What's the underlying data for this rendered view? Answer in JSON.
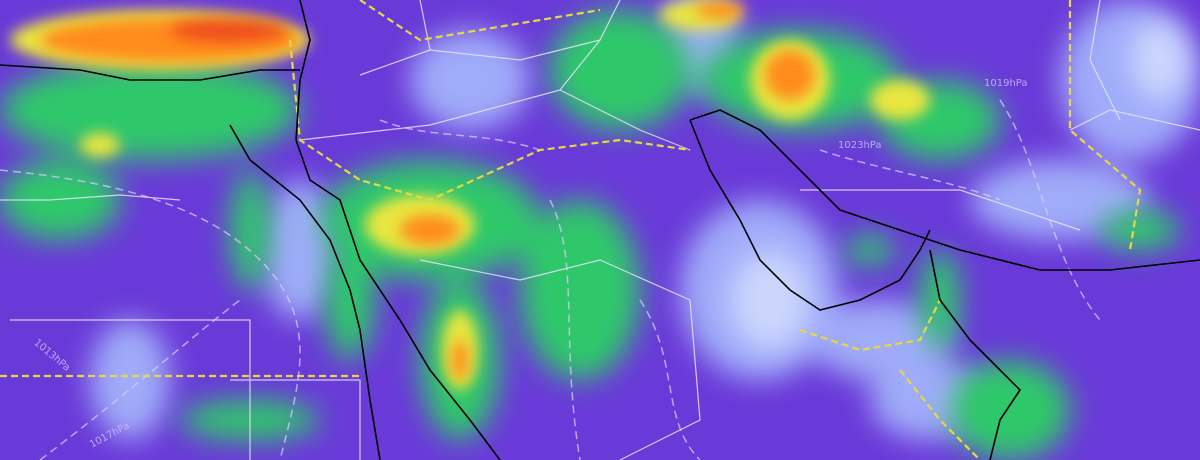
{
  "map": {
    "field_colors": {
      "base": "#6a3ad8",
      "light": "#a9c0ff",
      "pale": "#dfe8ff",
      "green": "#2ec86a",
      "teal": "#2aa890",
      "yellow": "#e9e640",
      "orange": "#ff8c1a",
      "red": "#e8341c"
    },
    "line_colors": {
      "coastline": "#000000",
      "country_border": "#e8e3f8",
      "disputed_border": "#e8d840",
      "isobar": "#d8ccff"
    },
    "isobar_labels": [
      {
        "text": "1019hPa"
      },
      {
        "text": "1023hPa"
      },
      {
        "text": "1017hPa"
      },
      {
        "text": "1013hPa"
      }
    ]
  }
}
